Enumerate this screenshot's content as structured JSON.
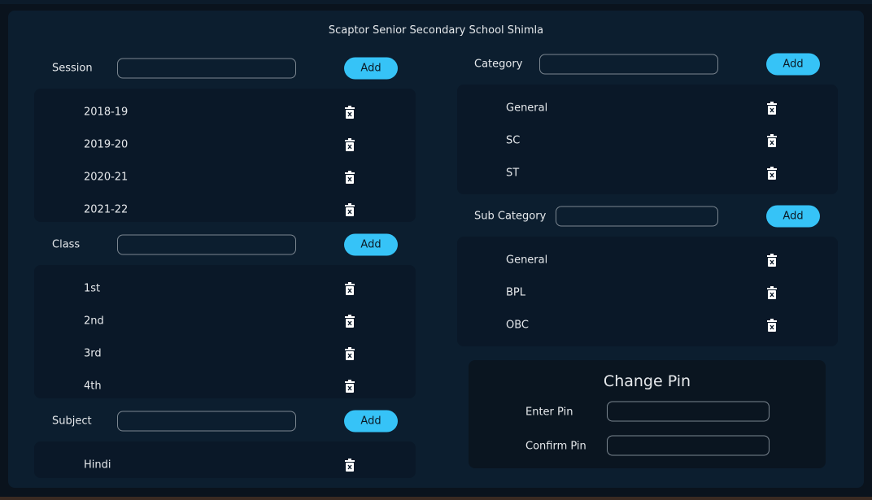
{
  "title": "Scaptor Senior Secondary School Shimla",
  "add_label": "Add",
  "session": {
    "label": "Session",
    "value": "",
    "items": [
      "2018-19",
      "2019-20",
      "2020-21",
      "2021-22"
    ]
  },
  "class": {
    "label": "Class",
    "value": "",
    "items": [
      "1st",
      "2nd",
      "3rd",
      "4th"
    ]
  },
  "subject": {
    "label": "Subject",
    "value": "",
    "items": [
      "Hindi"
    ]
  },
  "category": {
    "label": "Category",
    "value": "",
    "items": [
      "General",
      "SC",
      "ST"
    ]
  },
  "sub_category": {
    "label": "Sub Category",
    "value": "",
    "items": [
      "General",
      "BPL",
      "OBC"
    ]
  },
  "change_pin": {
    "title": "Change Pin",
    "enter_label": "Enter Pin",
    "confirm_label": "Confirm Pin",
    "enter_value": "",
    "confirm_value": ""
  },
  "colors": {
    "accent": "#36c3f7",
    "panel": "#0c1e2f",
    "list": "#0a1828"
  },
  "icons": {
    "delete": "trash-icon"
  }
}
